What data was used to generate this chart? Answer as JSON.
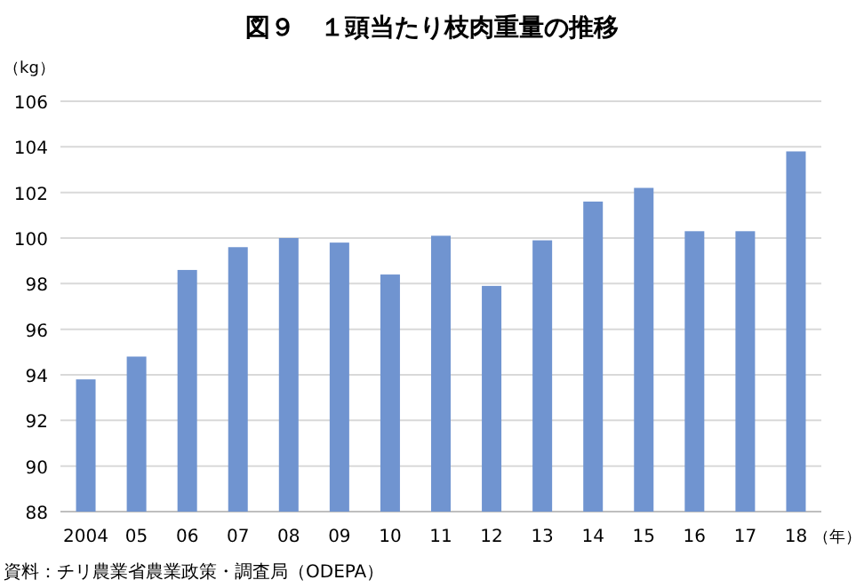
{
  "chart_data": {
    "type": "bar",
    "title": "図９　１頭当たり枝肉重量の推移",
    "ylabel": "（kg）",
    "xlabel": "（年）",
    "categories": [
      "2004",
      "05",
      "06",
      "07",
      "08",
      "09",
      "10",
      "11",
      "12",
      "13",
      "14",
      "15",
      "16",
      "17",
      "18"
    ],
    "values": [
      93.8,
      94.8,
      98.6,
      99.6,
      100.0,
      99.8,
      98.4,
      100.1,
      97.9,
      99.9,
      101.6,
      102.2,
      100.3,
      100.3,
      103.8
    ],
    "color": "#7094d0",
    "ylim": [
      88,
      106
    ],
    "yticks": [
      88,
      90,
      92,
      94,
      96,
      98,
      100,
      102,
      104,
      106
    ],
    "grid": "y",
    "annotations": [
      "資料：チリ農業省農業政策・調査局（ODEPA）"
    ]
  }
}
